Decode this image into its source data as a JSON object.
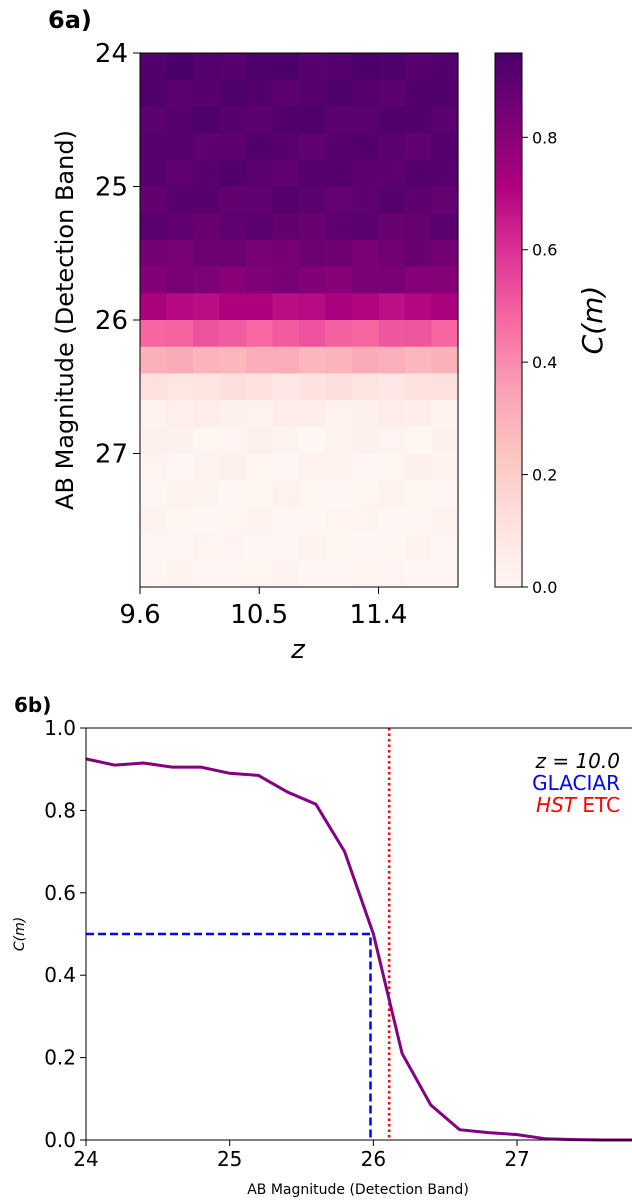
{
  "panel_a": {
    "label": "6a)",
    "xlabel": "z",
    "ylabel": "AB Magnitude (Detection Band)",
    "colorbar_label": "C(m)"
  },
  "panel_b": {
    "label": "6b)",
    "xlabel": "AB Magnitude (Detection Band)",
    "ylabel": "C(m)",
    "legend": {
      "redshift_text": "z = 10.0",
      "glaciar": "GLACIAR",
      "hst_italic": "HST",
      "hst_rest": " ETC"
    }
  },
  "chart_data": [
    {
      "type": "heatmap",
      "title": "6a)",
      "xlabel": "z",
      "ylabel": "AB Magnitude (Detection Band)",
      "colorbar_label": "C(m)",
      "colormap": "RdPu",
      "colorbar_range": [
        0.0,
        0.95
      ],
      "colorbar_ticks": [
        0.0,
        0.2,
        0.4,
        0.6,
        0.8
      ],
      "x_range": [
        9.6,
        12.0
      ],
      "x_ticks": [
        9.6,
        10.5,
        11.4
      ],
      "y_range": [
        24.0,
        28.0
      ],
      "y_ticks": [
        24,
        25,
        26,
        27
      ],
      "y_inverted": true,
      "columns": 12,
      "row_magnitudes": [
        24.0,
        24.2,
        24.4,
        24.6,
        24.8,
        25.0,
        25.2,
        25.4,
        25.6,
        25.8,
        26.0,
        26.2,
        26.4,
        26.6,
        26.8,
        27.0,
        27.2,
        27.4,
        27.6,
        27.8
      ],
      "row_values": [
        0.93,
        0.92,
        0.92,
        0.91,
        0.91,
        0.9,
        0.89,
        0.85,
        0.82,
        0.7,
        0.5,
        0.3,
        0.1,
        0.04,
        0.02,
        0.015,
        0.01,
        0.005,
        0.003,
        0.002
      ]
    },
    {
      "type": "line",
      "title": "6b)",
      "xlabel": "AB Magnitude (Detection Band)",
      "ylabel": "C(m)",
      "xlim": [
        24.0,
        27.8
      ],
      "ylim": [
        0.0,
        1.0
      ],
      "x_ticks": [
        24,
        25,
        26,
        27
      ],
      "y_ticks": [
        0.0,
        0.2,
        0.4,
        0.6,
        0.8,
        1.0
      ],
      "series": [
        {
          "color": "#800080",
          "x": [
            24.0,
            24.2,
            24.4,
            24.6,
            24.8,
            25.0,
            25.2,
            25.4,
            25.6,
            25.8,
            26.0,
            26.2,
            26.4,
            26.6,
            26.8,
            27.0,
            27.2,
            27.4,
            27.6,
            27.8
          ],
          "y": [
            0.925,
            0.91,
            0.915,
            0.905,
            0.905,
            0.89,
            0.885,
            0.845,
            0.815,
            0.7,
            0.5,
            0.21,
            0.085,
            0.025,
            0.018,
            0.013,
            0.003,
            0.001,
            0.0,
            0.0
          ]
        }
      ],
      "reference_lines": [
        {
          "name": "GLACIAR",
          "color": "#0000ff",
          "style": "dashed",
          "magnitude": 25.98,
          "completeness": 0.5
        },
        {
          "name": "HST ETC",
          "color": "#ff0000",
          "style": "dotted",
          "magnitude": 26.11
        }
      ]
    }
  ]
}
